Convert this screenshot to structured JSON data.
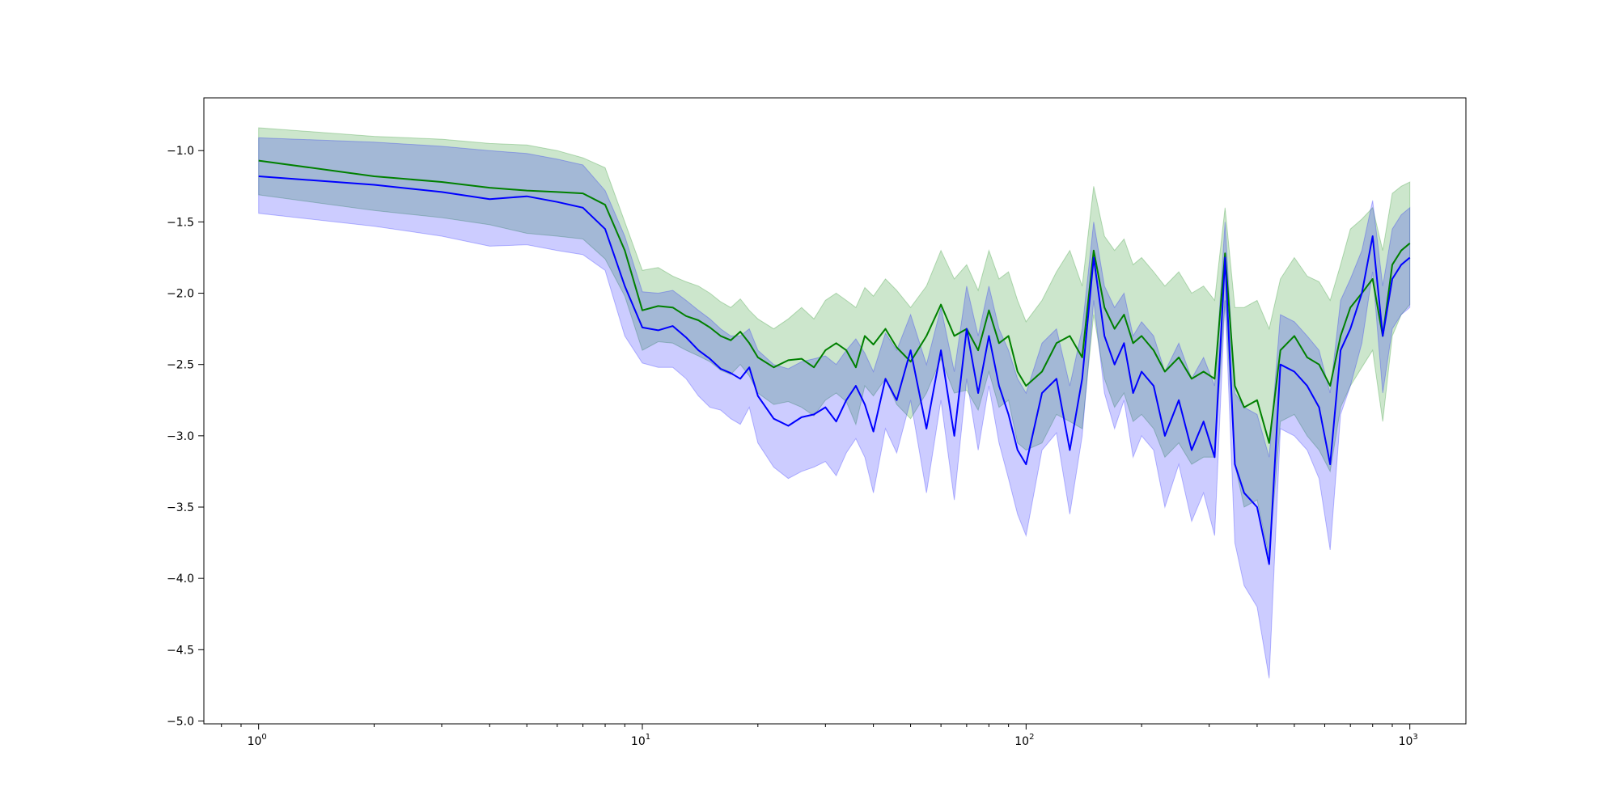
{
  "chart_data": {
    "type": "line",
    "title": "",
    "xlabel": "",
    "ylabel": "",
    "xscale": "log",
    "xlim": [
      0.72,
      1400
    ],
    "ylim": [
      -5.02,
      -0.63
    ],
    "grid": false,
    "legend": "none",
    "x_ticks": [
      {
        "value": 1,
        "base": "10",
        "exp": "0"
      },
      {
        "value": 10,
        "base": "10",
        "exp": "1"
      },
      {
        "value": 100,
        "base": "10",
        "exp": "2"
      },
      {
        "value": 1000,
        "base": "10",
        "exp": "3"
      }
    ],
    "y_ticks": [
      {
        "value": -1.0,
        "label": "−1.0"
      },
      {
        "value": -1.5,
        "label": "−1.5"
      },
      {
        "value": -2.0,
        "label": "−2.0"
      },
      {
        "value": -2.5,
        "label": "−2.5"
      },
      {
        "value": -3.0,
        "label": "−3.0"
      },
      {
        "value": -3.5,
        "label": "−3.5"
      },
      {
        "value": -4.0,
        "label": "−4.0"
      },
      {
        "value": -4.5,
        "label": "−4.5"
      },
      {
        "value": -5.0,
        "label": "−5.0"
      }
    ],
    "series": [
      {
        "color": "#008000",
        "band_color": "#008000",
        "band_opacity": 0.2,
        "x": [
          1,
          2,
          3,
          4,
          5,
          6,
          7,
          8,
          9,
          10,
          11,
          12,
          13,
          14,
          15,
          16,
          17,
          18,
          19,
          20,
          22,
          24,
          26,
          28,
          30,
          32,
          34,
          36,
          38,
          40,
          43,
          46,
          50,
          55,
          60,
          65,
          70,
          75,
          80,
          85,
          90,
          95,
          100,
          110,
          120,
          130,
          140,
          150,
          160,
          170,
          180,
          190,
          200,
          215,
          230,
          250,
          270,
          290,
          310,
          330,
          350,
          370,
          400,
          430,
          460,
          500,
          540,
          580,
          620,
          660,
          700,
          750,
          800,
          850,
          900,
          950,
          1000
        ],
        "y": [
          -1.07,
          -1.18,
          -1.22,
          -1.26,
          -1.28,
          -1.29,
          -1.3,
          -1.38,
          -1.7,
          -2.12,
          -2.09,
          -2.1,
          -2.16,
          -2.19,
          -2.24,
          -2.3,
          -2.33,
          -2.27,
          -2.35,
          -2.45,
          -2.52,
          -2.47,
          -2.46,
          -2.52,
          -2.4,
          -2.35,
          -2.4,
          -2.52,
          -2.3,
          -2.36,
          -2.25,
          -2.38,
          -2.48,
          -2.3,
          -2.08,
          -2.3,
          -2.25,
          -2.4,
          -2.12,
          -2.35,
          -2.3,
          -2.55,
          -2.65,
          -2.55,
          -2.35,
          -2.3,
          -2.45,
          -1.7,
          -2.1,
          -2.25,
          -2.15,
          -2.35,
          -2.3,
          -2.4,
          -2.55,
          -2.45,
          -2.6,
          -2.55,
          -2.6,
          -1.72,
          -2.65,
          -2.8,
          -2.75,
          -3.05,
          -2.4,
          -2.3,
          -2.45,
          -2.5,
          -2.65,
          -2.3,
          -2.1,
          -2.0,
          -1.9,
          -2.3,
          -1.8,
          -1.7,
          -1.65
        ],
        "upper": [
          -0.84,
          -0.9,
          -0.92,
          -0.95,
          -0.96,
          -1.0,
          -1.05,
          -1.12,
          -1.5,
          -1.84,
          -1.82,
          -1.88,
          -1.92,
          -1.95,
          -2.0,
          -2.06,
          -2.1,
          -2.04,
          -2.12,
          -2.18,
          -2.25,
          -2.18,
          -2.1,
          -2.18,
          -2.05,
          -2.0,
          -2.05,
          -2.1,
          -1.96,
          -2.02,
          -1.9,
          -1.98,
          -2.1,
          -1.95,
          -1.7,
          -1.9,
          -1.8,
          -1.98,
          -1.7,
          -1.9,
          -1.85,
          -2.05,
          -2.2,
          -2.05,
          -1.85,
          -1.7,
          -1.95,
          -1.25,
          -1.6,
          -1.7,
          -1.62,
          -1.8,
          -1.75,
          -1.85,
          -1.95,
          -1.85,
          -2.0,
          -1.95,
          -2.05,
          -1.4,
          -2.1,
          -2.1,
          -2.05,
          -2.25,
          -1.9,
          -1.75,
          -1.88,
          -1.92,
          -2.05,
          -1.8,
          -1.55,
          -1.48,
          -1.4,
          -1.7,
          -1.3,
          -1.25,
          -1.22
        ],
        "lower": [
          -1.31,
          -1.42,
          -1.47,
          -1.52,
          -1.58,
          -1.6,
          -1.62,
          -1.76,
          -2.02,
          -2.4,
          -2.34,
          -2.35,
          -2.4,
          -2.44,
          -2.48,
          -2.54,
          -2.57,
          -2.5,
          -2.58,
          -2.7,
          -2.78,
          -2.76,
          -2.8,
          -2.86,
          -2.75,
          -2.7,
          -2.76,
          -2.92,
          -2.65,
          -2.72,
          -2.6,
          -2.78,
          -2.88,
          -2.7,
          -2.46,
          -2.7,
          -2.68,
          -2.82,
          -2.55,
          -2.8,
          -2.75,
          -3.05,
          -3.1,
          -3.05,
          -2.85,
          -2.9,
          -2.95,
          -2.15,
          -2.6,
          -2.8,
          -2.7,
          -2.9,
          -2.85,
          -2.95,
          -3.15,
          -3.05,
          -3.2,
          -3.15,
          -3.15,
          -2.05,
          -3.2,
          -3.5,
          -3.45,
          -3.85,
          -2.9,
          -2.85,
          -3.0,
          -3.1,
          -3.25,
          -2.8,
          -2.65,
          -2.52,
          -2.4,
          -2.9,
          -2.3,
          -2.15,
          -2.08
        ]
      },
      {
        "color": "#0000ff",
        "band_color": "#0000ff",
        "band_opacity": 0.2,
        "x": [
          1,
          2,
          3,
          4,
          5,
          6,
          7,
          8,
          9,
          10,
          11,
          12,
          13,
          14,
          15,
          16,
          17,
          18,
          19,
          20,
          22,
          24,
          26,
          28,
          30,
          32,
          34,
          36,
          38,
          40,
          43,
          46,
          50,
          55,
          60,
          65,
          70,
          75,
          80,
          85,
          90,
          95,
          100,
          110,
          120,
          130,
          140,
          150,
          160,
          170,
          180,
          190,
          200,
          215,
          230,
          250,
          270,
          290,
          310,
          330,
          350,
          370,
          400,
          430,
          460,
          500,
          540,
          580,
          620,
          660,
          700,
          750,
          800,
          850,
          900,
          950,
          1000
        ],
        "y": [
          -1.18,
          -1.24,
          -1.29,
          -1.34,
          -1.32,
          -1.36,
          -1.4,
          -1.55,
          -1.95,
          -2.24,
          -2.26,
          -2.23,
          -2.31,
          -2.4,
          -2.46,
          -2.53,
          -2.56,
          -2.6,
          -2.52,
          -2.72,
          -2.88,
          -2.93,
          -2.87,
          -2.85,
          -2.8,
          -2.9,
          -2.75,
          -2.65,
          -2.78,
          -2.97,
          -2.6,
          -2.75,
          -2.4,
          -2.95,
          -2.4,
          -3.0,
          -2.25,
          -2.7,
          -2.3,
          -2.65,
          -2.85,
          -3.1,
          -3.2,
          -2.7,
          -2.6,
          -3.1,
          -2.6,
          -1.75,
          -2.3,
          -2.5,
          -2.35,
          -2.7,
          -2.55,
          -2.65,
          -3.0,
          -2.75,
          -3.1,
          -2.9,
          -3.15,
          -1.75,
          -3.2,
          -3.4,
          -3.5,
          -3.9,
          -2.5,
          -2.55,
          -2.65,
          -2.8,
          -3.2,
          -2.4,
          -2.25,
          -2.0,
          -1.6,
          -2.3,
          -1.9,
          -1.8,
          -1.75
        ],
        "upper": [
          -0.91,
          -0.94,
          -0.97,
          -1.0,
          -1.02,
          -1.06,
          -1.1,
          -1.28,
          -1.6,
          -1.99,
          -2.0,
          -1.98,
          -2.05,
          -2.12,
          -2.18,
          -2.25,
          -2.3,
          -2.3,
          -2.25,
          -2.4,
          -2.5,
          -2.53,
          -2.48,
          -2.46,
          -2.44,
          -2.5,
          -2.4,
          -2.32,
          -2.42,
          -2.55,
          -2.28,
          -2.4,
          -2.15,
          -2.5,
          -2.1,
          -2.55,
          -1.95,
          -2.3,
          -1.95,
          -2.25,
          -2.4,
          -2.6,
          -2.7,
          -2.35,
          -2.25,
          -2.65,
          -2.25,
          -1.5,
          -1.95,
          -2.1,
          -2.0,
          -2.3,
          -2.2,
          -2.3,
          -2.55,
          -2.35,
          -2.6,
          -2.45,
          -2.65,
          -1.5,
          -2.7,
          -2.8,
          -2.85,
          -3.15,
          -2.15,
          -2.2,
          -2.3,
          -2.4,
          -2.7,
          -2.05,
          -1.9,
          -1.7,
          -1.35,
          -1.95,
          -1.55,
          -1.45,
          -1.4
        ],
        "lower": [
          -1.44,
          -1.53,
          -1.6,
          -1.67,
          -1.66,
          -1.7,
          -1.73,
          -1.84,
          -2.3,
          -2.49,
          -2.52,
          -2.52,
          -2.6,
          -2.72,
          -2.8,
          -2.82,
          -2.88,
          -2.92,
          -2.8,
          -3.05,
          -3.22,
          -3.3,
          -3.25,
          -3.22,
          -3.18,
          -3.28,
          -3.12,
          -3.02,
          -3.15,
          -3.4,
          -2.95,
          -3.12,
          -2.75,
          -3.4,
          -2.75,
          -3.45,
          -2.6,
          -3.1,
          -2.65,
          -3.05,
          -3.3,
          -3.55,
          -3.7,
          -3.1,
          -2.98,
          -3.55,
          -3.0,
          -2.05,
          -2.7,
          -2.95,
          -2.75,
          -3.15,
          -3.0,
          -3.1,
          -3.5,
          -3.2,
          -3.6,
          -3.4,
          -3.7,
          -2.05,
          -3.75,
          -4.05,
          -4.2,
          -4.7,
          -2.95,
          -3.0,
          -3.1,
          -3.3,
          -3.8,
          -2.85,
          -2.65,
          -2.35,
          -1.85,
          -2.7,
          -2.25,
          -2.15,
          -2.1
        ]
      }
    ]
  }
}
